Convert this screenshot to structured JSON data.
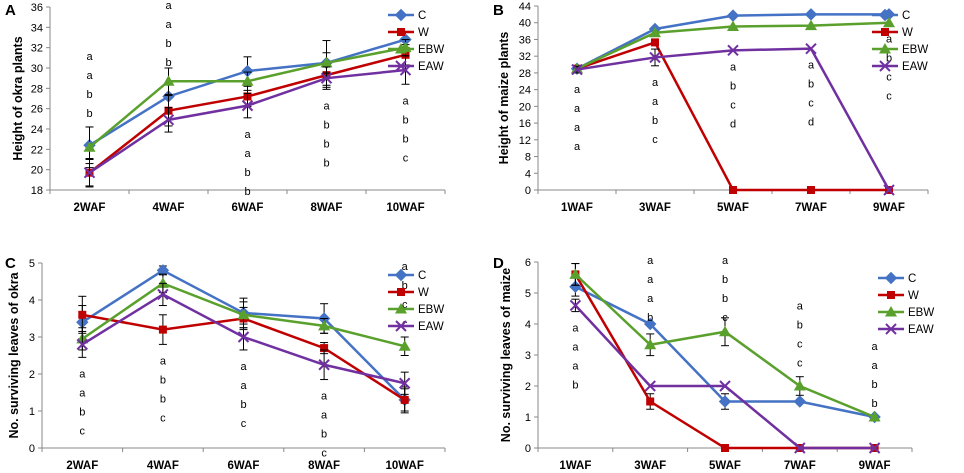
{
  "colors": {
    "C": "#4472c4",
    "W": "#c00000",
    "EBW": "#5aa02c",
    "EAW": "#7030a0"
  },
  "chart_data": [
    {
      "panel": "A",
      "type": "line",
      "ylabel": "Height of okra plants",
      "categories": [
        "2WAF",
        "4WAF",
        "6WAF",
        "8WAF",
        "10WAF"
      ],
      "yticks": [
        "18",
        "20",
        "22",
        "24",
        "26",
        "28",
        "30",
        "32",
        "34",
        "36"
      ],
      "ylim": [
        18,
        36
      ],
      "series": [
        {
          "name": "C",
          "marker": "diamond",
          "values": [
            22.4,
            27.2,
            29.7,
            30.5,
            32.8
          ],
          "err": [
            1.8,
            1.2,
            1.4,
            2.2,
            0.8
          ]
        },
        {
          "name": "W",
          "marker": "square",
          "values": [
            19.7,
            25.8,
            27.2,
            29.3,
            31.3
          ],
          "err": [
            1.4,
            1.5,
            1.0,
            1.2,
            1.0
          ]
        },
        {
          "name": "EBW",
          "marker": "triangle",
          "values": [
            22.2,
            28.7,
            28.7,
            30.5,
            32.0
          ],
          "err": [
            2.0,
            1.3,
            0.9,
            1.0,
            0.8
          ]
        },
        {
          "name": "EAW",
          "marker": "x",
          "values": [
            19.7,
            24.9,
            26.3,
            29.0,
            29.8
          ],
          "err": [
            1.3,
            1.2,
            1.2,
            1.1,
            1.4
          ]
        }
      ],
      "annotations": [
        {
          "x": "2WAF",
          "side": "above",
          "letters": [
            "a",
            "a",
            "b",
            "b"
          ]
        },
        {
          "x": "4WAF",
          "side": "above",
          "letters": [
            "a",
            "a",
            "b",
            "b"
          ]
        },
        {
          "x": "6WAF",
          "side": "below",
          "letters": [
            "a",
            "a",
            "b",
            "b"
          ]
        },
        {
          "x": "8WAF",
          "side": "below",
          "letters": [
            "a",
            "b",
            "b",
            "b"
          ]
        },
        {
          "x": "10WAF",
          "side": "below",
          "letters": [
            "a",
            "b",
            "b",
            "c"
          ]
        }
      ]
    },
    {
      "panel": "B",
      "type": "line",
      "ylabel": "Height of maize plants",
      "categories": [
        "1WAF",
        "3WAF",
        "5WAF",
        "7WAF",
        "9WAF"
      ],
      "yticks": [
        "0",
        "4",
        "8",
        "12",
        "16",
        "20",
        "24",
        "28",
        "32",
        "36",
        "40",
        "44"
      ],
      "ylim": [
        0,
        44
      ],
      "series": [
        {
          "name": "C",
          "marker": "diamond",
          "values": [
            29.0,
            38.5,
            41.7,
            42.0,
            42.0
          ],
          "err": [
            0,
            0,
            0,
            0,
            0
          ]
        },
        {
          "name": "W",
          "marker": "square",
          "values": [
            29.0,
            35.3,
            0,
            0,
            0
          ],
          "err": [
            0,
            0,
            0,
            0,
            0
          ]
        },
        {
          "name": "EBW",
          "marker": "triangle",
          "values": [
            29.0,
            37.6,
            39.1,
            39.3,
            40.0
          ],
          "err": [
            0,
            0,
            0,
            0,
            0
          ]
        },
        {
          "name": "EAW",
          "marker": "x",
          "values": [
            28.8,
            31.7,
            33.4,
            33.8,
            0
          ],
          "err": [
            0.8,
            2.0,
            0,
            0,
            0
          ]
        }
      ],
      "annotations": [
        {
          "x": "1WAF",
          "side": "below",
          "letters": [
            "a",
            "a",
            "a",
            "a"
          ]
        },
        {
          "x": "3WAF",
          "side": "below",
          "letters": [
            "a",
            "a",
            "b",
            "c"
          ]
        },
        {
          "x": "5WAF",
          "side": "below",
          "letters": [
            "a",
            "b",
            "c",
            "d"
          ]
        },
        {
          "x": "7WAF",
          "side": "below",
          "letters": [
            "a",
            "b",
            "c",
            "d"
          ]
        },
        {
          "x": "9WAF",
          "side": "below",
          "letters": [
            "a",
            "b",
            "c",
            "c"
          ]
        }
      ]
    },
    {
      "panel": "C",
      "type": "line",
      "ylabel": "No. surviving leaves of okra",
      "categories": [
        "2WAF",
        "4WAF",
        "6WAF",
        "8WAF",
        "10WAF"
      ],
      "yticks": [
        "0",
        "1",
        "2",
        "3",
        "4",
        "5"
      ],
      "ylim": [
        0,
        5
      ],
      "series": [
        {
          "name": "C",
          "marker": "diamond",
          "values": [
            3.4,
            4.8,
            3.65,
            3.5,
            1.3
          ],
          "err": [
            0.45,
            0.12,
            0.4,
            0.4,
            0.35
          ]
        },
        {
          "name": "W",
          "marker": "square",
          "values": [
            3.6,
            3.2,
            3.5,
            2.7,
            1.3
          ],
          "err": [
            0.5,
            0.4,
            0.3,
            0.15,
            0.3
          ]
        },
        {
          "name": "EBW",
          "marker": "triangle",
          "values": [
            2.95,
            4.45,
            3.6,
            3.3,
            2.75
          ],
          "err": [
            0.3,
            0.25,
            0.35,
            0.2,
            0.25
          ]
        },
        {
          "name": "EAW",
          "marker": "x",
          "values": [
            2.8,
            4.15,
            3.0,
            2.25,
            1.75
          ],
          "err": [
            0.35,
            0.3,
            0.35,
            0.4,
            0.3
          ]
        }
      ],
      "annotations": [
        {
          "x": "2WAF",
          "side": "below",
          "letters": [
            "a",
            "a",
            "b",
            "c"
          ]
        },
        {
          "x": "4WAF",
          "side": "below",
          "letters": [
            "a",
            "b",
            "b",
            "c"
          ]
        },
        {
          "x": "6WAF",
          "side": "below",
          "letters": [
            "a",
            "a",
            "b",
            "c"
          ]
        },
        {
          "x": "8WAF",
          "side": "below",
          "letters": [
            "a",
            "a",
            "b",
            "c"
          ]
        },
        {
          "x": "10WAF",
          "side": "above",
          "letters": [
            "a",
            "b",
            "c",
            "c"
          ]
        }
      ]
    },
    {
      "panel": "D",
      "type": "line",
      "ylabel": "No. surviving leaves of maize",
      "categories": [
        "1WAF",
        "3WAF",
        "5WAF",
        "7WAF",
        "9WAF"
      ],
      "yticks": [
        "0",
        "1",
        "2",
        "3",
        "4",
        "5",
        "6"
      ],
      "ylim": [
        0,
        6
      ],
      "series": [
        {
          "name": "C",
          "marker": "diamond",
          "values": [
            5.2,
            4.0,
            1.5,
            1.5,
            1.0
          ],
          "err": [
            0.3,
            0,
            0.25,
            0,
            0
          ]
        },
        {
          "name": "W",
          "marker": "square",
          "values": [
            5.6,
            1.5,
            0,
            0,
            0
          ],
          "err": [
            0.35,
            0.25,
            0,
            0,
            0
          ]
        },
        {
          "name": "EBW",
          "marker": "triangle",
          "values": [
            5.6,
            3.33,
            3.75,
            2.0,
            1.0
          ],
          "err": [
            0.35,
            0.35,
            0.45,
            0.3,
            0
          ]
        },
        {
          "name": "EAW",
          "marker": "x",
          "values": [
            4.6,
            2.0,
            2.0,
            0,
            0
          ],
          "err": [
            0.2,
            0,
            0,
            0,
            0
          ]
        }
      ],
      "annotations": [
        {
          "x": "1WAF",
          "side": "below",
          "letters": [
            "a",
            "a",
            "a",
            "b"
          ]
        },
        {
          "x": "3WAF",
          "side": "above",
          "letters": [
            "a",
            "a",
            "a",
            "b"
          ]
        },
        {
          "x": "5WAF",
          "side": "above",
          "letters": [
            "a",
            "b",
            "b",
            "c"
          ]
        },
        {
          "x": "7WAF",
          "side": "above",
          "letters": [
            "a",
            "b",
            "c",
            "c"
          ]
        },
        {
          "x": "9WAF",
          "side": "above",
          "letters": [
            "a",
            "a",
            "b",
            "b"
          ]
        }
      ]
    }
  ]
}
